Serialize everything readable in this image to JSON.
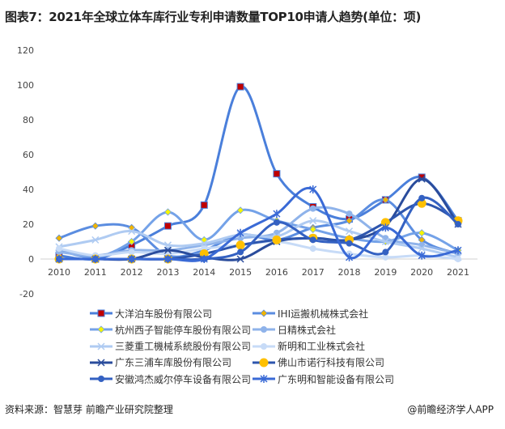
{
  "title": "图表7：2021年全球立体车库行业专利申请数量TOP10申请人趋势(单位：项)",
  "source": "资料来源：智慧芽 前瞻产业研究院整理",
  "credit": "@前瞻经济学人APP",
  "chart_data": {
    "type": "line",
    "smooth": true,
    "title": "图表7：2021年全球立体车库行业专利申请数量TOP10申请人趋势(单位：项)",
    "x": [
      "2010",
      "2011",
      "2012",
      "2013",
      "2014",
      "2015",
      "2016",
      "2017",
      "2018",
      "2019",
      "2020",
      "2021"
    ],
    "ylim": [
      -20,
      120
    ],
    "yticks": [
      -20,
      0,
      20,
      40,
      60,
      80,
      100,
      120
    ],
    "grid": false,
    "legend_position": "bottom",
    "series": [
      {
        "name": "大洋泊车股份有限公司",
        "color": "#4a7fdb",
        "marker": "square",
        "marker_color": "#c00000",
        "values": [
          2,
          0,
          8,
          19,
          31,
          99,
          49,
          30,
          23,
          34,
          47,
          22
        ]
      },
      {
        "name": "IHI运搬机械株式会社",
        "color": "#5b8de0",
        "marker": "diamond",
        "marker_color": "#f0b400",
        "values": [
          12,
          19,
          18,
          2,
          5,
          14,
          11,
          18,
          22,
          34,
          11,
          3
        ]
      },
      {
        "name": "杭州西子智能停车股份有限公司",
        "color": "#74a2e8",
        "marker": "diamond",
        "marker_color": "#f5f500",
        "values": [
          5,
          1,
          10,
          27,
          11,
          28,
          22,
          17,
          12,
          10,
          15,
          5
        ]
      },
      {
        "name": "日精株式会社",
        "color": "#8fb3ea",
        "marker": "circle",
        "marker_color": "#8fb3ea",
        "values": [
          4,
          2,
          5,
          5,
          8,
          12,
          15,
          29,
          26,
          12,
          8,
          3
        ]
      },
      {
        "name": "三菱重工機械系統股份有限公司",
        "color": "#afcbf2",
        "marker": "x",
        "marker_color": "#afcbf2",
        "values": [
          7,
          11,
          16,
          8,
          9,
          14,
          13,
          22,
          16,
          10,
          6,
          1
        ]
      },
      {
        "name": "新明和工业株式会社",
        "color": "#c7dbf7",
        "marker": "circle",
        "marker_color": "#c7dbf7",
        "values": [
          6,
          2,
          4,
          3,
          6,
          8,
          10,
          6,
          3,
          1,
          2,
          0
        ]
      },
      {
        "name": "广东三浦车库股份有限公司",
        "color": "#2a4c9c",
        "marker": "x",
        "marker_color": "#2a4c9c",
        "values": [
          0,
          0,
          0,
          5,
          1,
          0,
          10,
          12,
          11,
          19,
          46,
          20
        ]
      },
      {
        "name": "佛山市诺行科技有限公司",
        "color": "#2d55ad",
        "marker": "circle-big",
        "marker_color": "#ffc000",
        "values": [
          0,
          0,
          0,
          0,
          3,
          8,
          11,
          12,
          11,
          21,
          32,
          22
        ]
      },
      {
        "name": "安徽鸿杰威尔停车设备有限公司",
        "color": "#3461c2",
        "marker": "circle",
        "marker_color": "#3461c2",
        "values": [
          0,
          0,
          0,
          0,
          0,
          4,
          21,
          11,
          9,
          4,
          35,
          20
        ]
      },
      {
        "name": "广东明和智能设备有限公司",
        "color": "#3a6ad6",
        "marker": "asterisk",
        "marker_color": "#3a6ad6",
        "values": [
          0,
          0,
          0,
          0,
          0,
          15,
          26,
          40,
          1,
          18,
          2,
          5
        ]
      }
    ]
  }
}
